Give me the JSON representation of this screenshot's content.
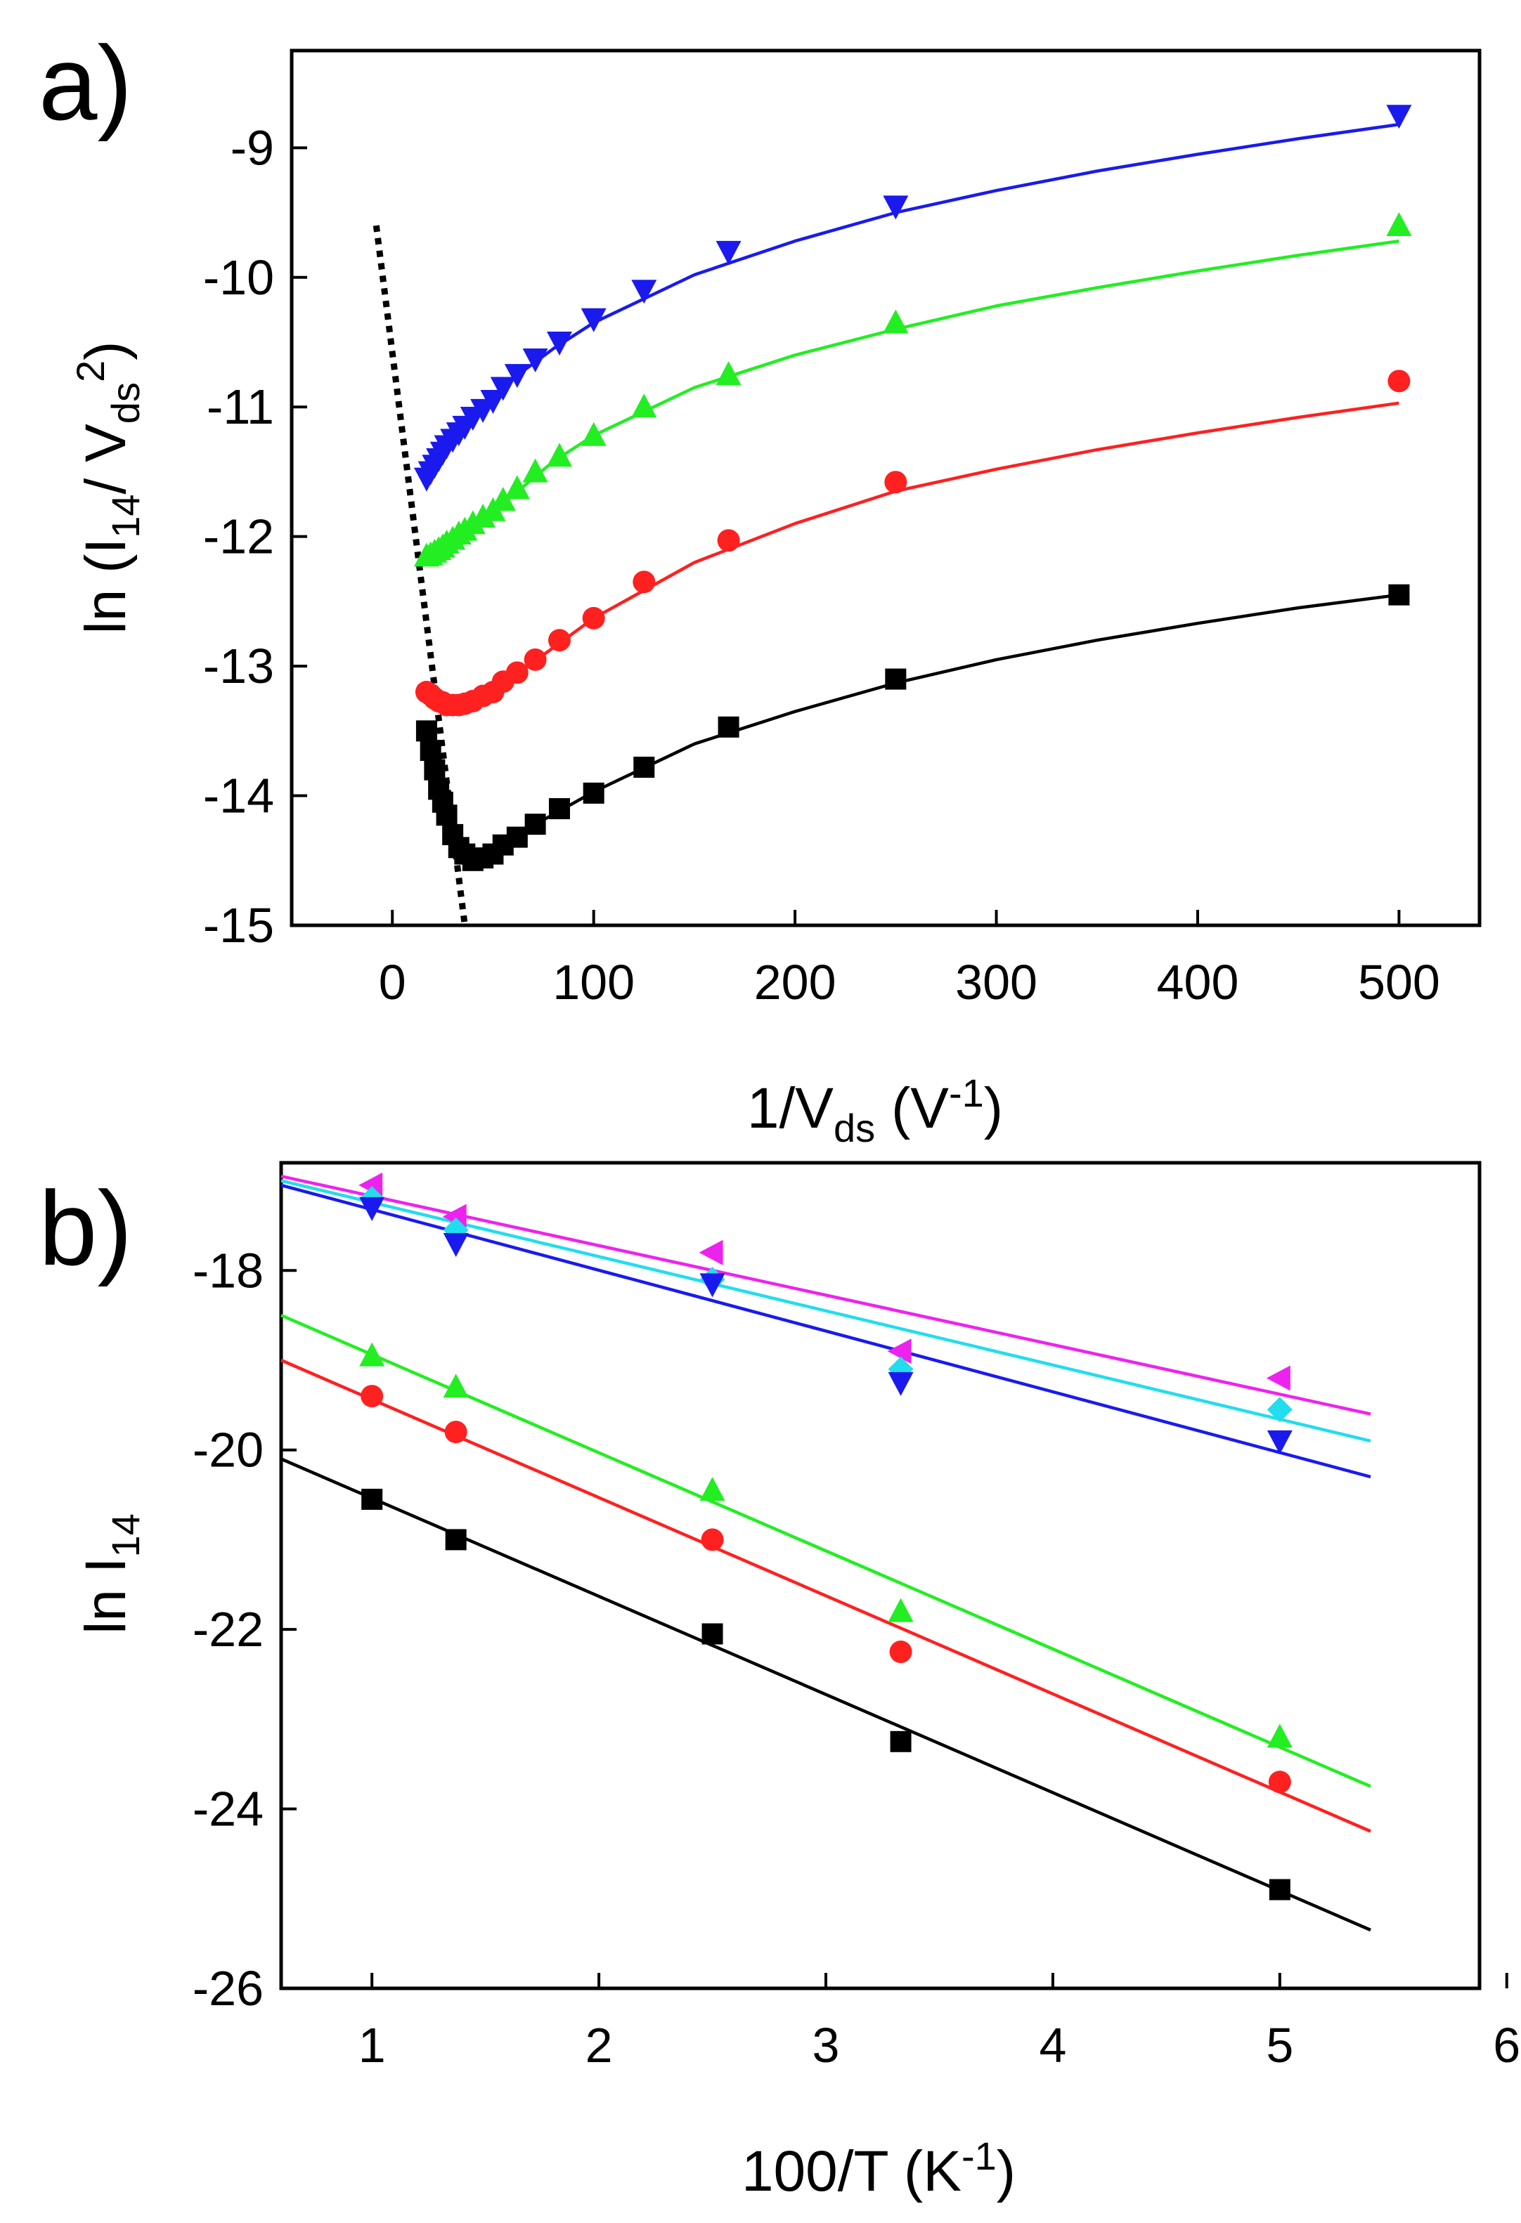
{
  "figure": {
    "panels": [
      "a)",
      "b)"
    ]
  },
  "chart_data": [
    {
      "panel": "a)",
      "type": "scatter",
      "xlabel": {
        "base": "1/V",
        "sub": "ds",
        "unit_open": " (V",
        "sup": "-1",
        "unit_close": ")"
      },
      "ylabel": {
        "prefix": "ln (I",
        "sub1": "14",
        "mid": "/ V",
        "sub2": "ds",
        "sup": "2",
        "suffix": ")"
      },
      "xlim": [
        -50,
        540
      ],
      "ylim": [
        -15,
        -8.25
      ],
      "xticks": [
        0,
        100,
        200,
        300,
        400,
        500
      ],
      "yticks": [
        -15,
        -14,
        -13,
        -12,
        -11,
        -10,
        -9
      ],
      "guide_line": {
        "style": "dotted",
        "color": "#000000",
        "points": [
          [
            -8,
            -9.6
          ],
          [
            36,
            -15
          ]
        ]
      },
      "series": [
        {
          "name": "black",
          "marker": "square",
          "color": "#000000",
          "x": [
            17,
            19,
            21,
            23,
            25,
            27,
            30,
            33,
            36,
            40,
            45,
            50,
            55,
            62,
            71,
            83,
            100,
            125,
            167,
            250,
            500
          ],
          "y": [
            -13.5,
            -13.65,
            -13.8,
            -13.95,
            -14.05,
            -14.15,
            -14.3,
            -14.4,
            -14.45,
            -14.5,
            -14.48,
            -14.45,
            -14.38,
            -14.32,
            -14.22,
            -14.1,
            -13.98,
            -13.78,
            -13.47,
            -13.1,
            -12.45
          ],
          "fit": [
            [
              20,
              -13.75
            ],
            [
              30,
              -14.35
            ],
            [
              40,
              -14.5
            ],
            [
              50,
              -14.42
            ],
            [
              70,
              -14.23
            ],
            [
              100,
              -13.97
            ],
            [
              150,
              -13.6
            ],
            [
              200,
              -13.35
            ],
            [
              250,
              -13.13
            ],
            [
              300,
              -12.95
            ],
            [
              350,
              -12.8
            ],
            [
              400,
              -12.67
            ],
            [
              450,
              -12.55
            ],
            [
              500,
              -12.45
            ]
          ]
        },
        {
          "name": "red",
          "marker": "circle",
          "color": "#ff2020",
          "x": [
            17,
            19,
            21,
            23,
            25,
            27,
            30,
            33,
            36,
            40,
            45,
            50,
            55,
            62,
            71,
            83,
            100,
            125,
            167,
            250,
            500
          ],
          "y": [
            -13.2,
            -13.22,
            -13.25,
            -13.27,
            -13.28,
            -13.3,
            -13.3,
            -13.3,
            -13.29,
            -13.27,
            -13.23,
            -13.2,
            -13.12,
            -13.05,
            -12.95,
            -12.8,
            -12.63,
            -12.35,
            -12.03,
            -11.58,
            -10.8
          ],
          "fit": [
            [
              15,
              -13.15
            ],
            [
              25,
              -13.28
            ],
            [
              35,
              -13.29
            ],
            [
              50,
              -13.18
            ],
            [
              70,
              -12.97
            ],
            [
              100,
              -12.63
            ],
            [
              150,
              -12.2
            ],
            [
              200,
              -11.9
            ],
            [
              250,
              -11.65
            ],
            [
              300,
              -11.48
            ],
            [
              350,
              -11.33
            ],
            [
              400,
              -11.2
            ],
            [
              450,
              -11.08
            ],
            [
              500,
              -10.97
            ]
          ]
        },
        {
          "name": "green",
          "marker": "triangle-up",
          "color": "#22ee22",
          "x": [
            17,
            19,
            21,
            23,
            25,
            27,
            30,
            33,
            36,
            40,
            45,
            50,
            55,
            62,
            71,
            83,
            100,
            125,
            167,
            250,
            500
          ],
          "y": [
            -12.15,
            -12.14,
            -12.12,
            -12.1,
            -12.08,
            -12.05,
            -12.02,
            -11.98,
            -11.95,
            -11.9,
            -11.85,
            -11.8,
            -11.72,
            -11.63,
            -11.5,
            -11.38,
            -11.22,
            -11.0,
            -10.75,
            -10.35,
            -9.6
          ],
          "fit": [
            [
              15,
              -12.15
            ],
            [
              25,
              -12.05
            ],
            [
              40,
              -11.92
            ],
            [
              60,
              -11.68
            ],
            [
              80,
              -11.42
            ],
            [
              100,
              -11.22
            ],
            [
              150,
              -10.85
            ],
            [
              200,
              -10.6
            ],
            [
              250,
              -10.4
            ],
            [
              300,
              -10.22
            ],
            [
              350,
              -10.08
            ],
            [
              400,
              -9.95
            ],
            [
              450,
              -9.83
            ],
            [
              500,
              -9.72
            ]
          ]
        },
        {
          "name": "blue",
          "marker": "triangle-down",
          "color": "#1a1aee",
          "x": [
            17,
            19,
            21,
            23,
            25,
            27,
            30,
            33,
            36,
            40,
            45,
            50,
            55,
            62,
            71,
            83,
            100,
            125,
            167,
            250,
            500
          ],
          "y": [
            -11.55,
            -11.5,
            -11.45,
            -11.4,
            -11.35,
            -11.3,
            -11.25,
            -11.2,
            -11.15,
            -11.08,
            -11.02,
            -10.95,
            -10.85,
            -10.75,
            -10.63,
            -10.5,
            -10.32,
            -10.1,
            -9.8,
            -9.45,
            -8.75
          ],
          "fit": [
            [
              15,
              -11.55
            ],
            [
              25,
              -11.37
            ],
            [
              40,
              -11.1
            ],
            [
              60,
              -10.78
            ],
            [
              80,
              -10.55
            ],
            [
              100,
              -10.35
            ],
            [
              150,
              -9.98
            ],
            [
              200,
              -9.72
            ],
            [
              250,
              -9.5
            ],
            [
              300,
              -9.33
            ],
            [
              350,
              -9.18
            ],
            [
              400,
              -9.05
            ],
            [
              450,
              -8.93
            ],
            [
              500,
              -8.82
            ]
          ]
        }
      ]
    },
    {
      "panel": "b)",
      "type": "scatter",
      "xlabel": {
        "base": "100/T",
        "unit_open": " (K",
        "sup": "-1",
        "unit_close": ")"
      },
      "ylabel": {
        "prefix": "ln I",
        "sub1": "14"
      },
      "xlim": [
        0.6,
        5.88
      ],
      "ylim": [
        -26,
        -16.8
      ],
      "xticks": [
        1,
        2,
        3,
        4,
        5,
        6
      ],
      "yticks": [
        -26,
        -24,
        -22,
        -20,
        -18
      ],
      "series": [
        {
          "name": "magenta",
          "marker": "triangle-left",
          "color": "#ee22ee",
          "x": [
            1.0,
            1.37,
            2.5,
            3.33,
            5.0
          ],
          "y": [
            -17.05,
            -17.4,
            -17.8,
            -18.9,
            -19.2
          ],
          "fit": [
            [
              0.6,
              -16.95
            ],
            [
              5.4,
              -19.6
            ]
          ]
        },
        {
          "name": "cyan",
          "marker": "diamond",
          "color": "#22ddee",
          "x": [
            1.0,
            1.37,
            2.5,
            3.33,
            5.0
          ],
          "y": [
            -17.2,
            -17.55,
            -18.1,
            -19.1,
            -19.55
          ],
          "fit": [
            [
              0.6,
              -17.0
            ],
            [
              5.4,
              -19.9
            ]
          ]
        },
        {
          "name": "blue",
          "marker": "triangle-down",
          "color": "#1a1aee",
          "x": [
            1.0,
            1.37,
            2.5,
            3.33,
            5.0
          ],
          "y": [
            -17.3,
            -17.7,
            -18.15,
            -19.25,
            -19.9
          ],
          "fit": [
            [
              0.6,
              -17.05
            ],
            [
              5.4,
              -20.3
            ]
          ]
        },
        {
          "name": "green",
          "marker": "triangle-up",
          "color": "#22ee22",
          "x": [
            1.0,
            1.37,
            2.5,
            3.33,
            5.0
          ],
          "y": [
            -18.95,
            -19.3,
            -20.45,
            -21.8,
            -23.2
          ],
          "fit": [
            [
              0.6,
              -18.5
            ],
            [
              5.4,
              -23.75
            ]
          ]
        },
        {
          "name": "red",
          "marker": "circle",
          "color": "#ff2020",
          "x": [
            1.0,
            1.37,
            2.5,
            3.33,
            5.0
          ],
          "y": [
            -19.4,
            -19.8,
            -21.0,
            -22.25,
            -23.7
          ],
          "fit": [
            [
              0.6,
              -19.0
            ],
            [
              5.4,
              -24.25
            ]
          ]
        },
        {
          "name": "black",
          "marker": "square",
          "color": "#000000",
          "x": [
            1.0,
            1.37,
            2.5,
            3.33,
            5.0
          ],
          "y": [
            -20.55,
            -21.0,
            -22.05,
            -23.25,
            -24.9
          ],
          "fit": [
            [
              0.6,
              -20.1
            ],
            [
              5.4,
              -25.35
            ]
          ]
        }
      ]
    }
  ]
}
